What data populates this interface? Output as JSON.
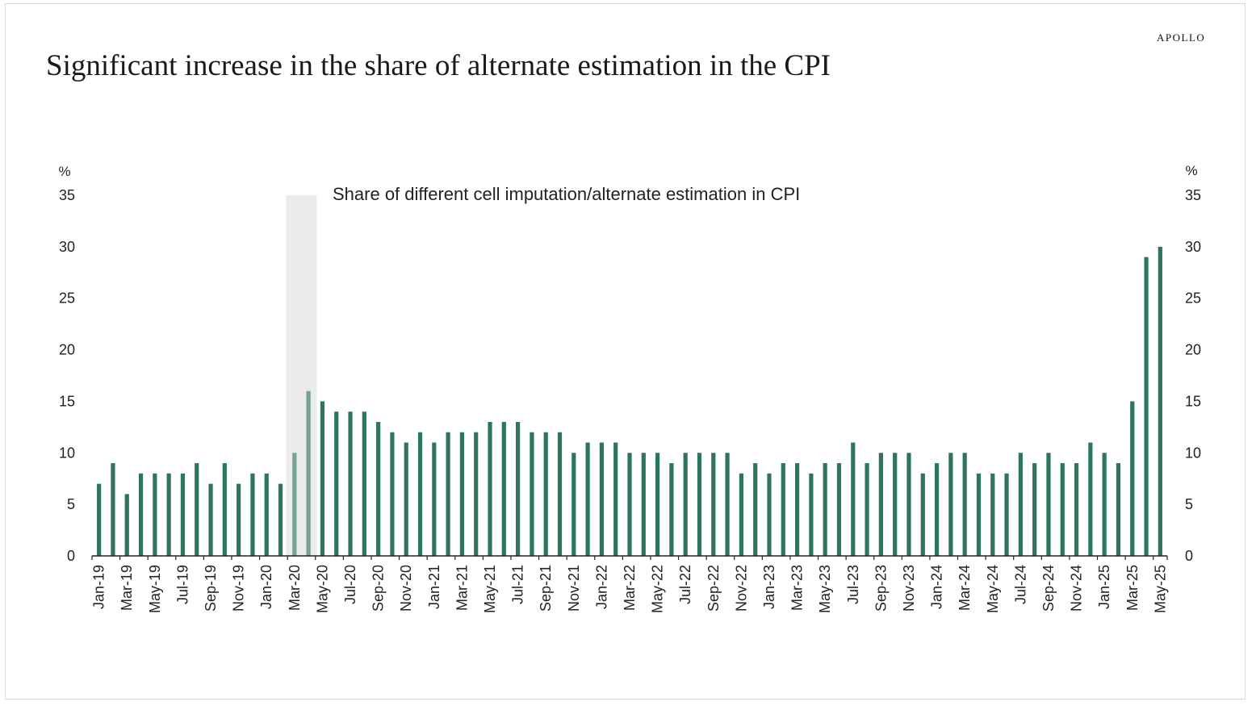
{
  "brand": "APOLLO",
  "title": "Significant increase in the share of alternate estimation in the CPI",
  "colors": {
    "bar": "#2e7560",
    "shade": "#ebebeb"
  },
  "chart_data": {
    "type": "bar",
    "subtitle": "Share of different cell imputation/alternate estimation in CPI",
    "yunit_left": "%",
    "yunit_right": "%",
    "ylim": [
      0,
      35
    ],
    "yticks": [
      0,
      5,
      10,
      15,
      20,
      25,
      30,
      35
    ],
    "categories": [
      "Jan-19",
      "Feb-19",
      "Mar-19",
      "Apr-19",
      "May-19",
      "Jun-19",
      "Jul-19",
      "Aug-19",
      "Sep-19",
      "Oct-19",
      "Nov-19",
      "Dec-19",
      "Jan-20",
      "Feb-20",
      "Mar-20",
      "Apr-20",
      "May-20",
      "Jun-20",
      "Jul-20",
      "Aug-20",
      "Sep-20",
      "Oct-20",
      "Nov-20",
      "Dec-20",
      "Jan-21",
      "Feb-21",
      "Mar-21",
      "Apr-21",
      "May-21",
      "Jun-21",
      "Jul-21",
      "Aug-21",
      "Sep-21",
      "Oct-21",
      "Nov-21",
      "Dec-21",
      "Jan-22",
      "Feb-22",
      "Mar-22",
      "Apr-22",
      "May-22",
      "Jun-22",
      "Jul-22",
      "Aug-22",
      "Sep-22",
      "Oct-22",
      "Nov-22",
      "Dec-22",
      "Jan-23",
      "Feb-23",
      "Mar-23",
      "Apr-23",
      "May-23",
      "Jun-23",
      "Jul-23",
      "Aug-23",
      "Sep-23",
      "Oct-23",
      "Nov-23",
      "Dec-23",
      "Jan-24",
      "Feb-24",
      "Mar-24",
      "Apr-24",
      "May-24",
      "Jun-24",
      "Jul-24",
      "Aug-24",
      "Sep-24",
      "Oct-24",
      "Nov-24",
      "Dec-24",
      "Jan-25",
      "Feb-25",
      "Mar-25",
      "Apr-25",
      "May-25"
    ],
    "x_tick_labels": [
      "Jan-19",
      "Mar-19",
      "May-19",
      "Jul-19",
      "Sep-19",
      "Nov-19",
      "Jan-20",
      "Mar-20",
      "May-20",
      "Jul-20",
      "Sep-20",
      "Nov-20",
      "Jan-21",
      "Mar-21",
      "May-21",
      "Jul-21",
      "Sep-21",
      "Nov-21",
      "Jan-22",
      "Mar-22",
      "May-22",
      "Jul-22",
      "Sep-22",
      "Nov-22",
      "Jan-23",
      "Mar-23",
      "May-23",
      "Jul-23",
      "Sep-23",
      "Nov-23",
      "Jan-24",
      "Mar-24",
      "May-24",
      "Jul-24",
      "Sep-24",
      "Nov-24",
      "Jan-25",
      "Mar-25",
      "May-25"
    ],
    "values": [
      7,
      9,
      6,
      8,
      8,
      8,
      8,
      9,
      7,
      9,
      7,
      8,
      8,
      7,
      10,
      16,
      15,
      14,
      14,
      14,
      13,
      12,
      11,
      12,
      11,
      12,
      12,
      12,
      13,
      13,
      13,
      12,
      12,
      12,
      10,
      11,
      11,
      11,
      10,
      10,
      10,
      9,
      10,
      10,
      10,
      10,
      8,
      9,
      8,
      9,
      9,
      8,
      9,
      9,
      11,
      9,
      10,
      10,
      10,
      8,
      9,
      10,
      10,
      8,
      8,
      8,
      10,
      9,
      10,
      9,
      9,
      11,
      10,
      9,
      15,
      29,
      30
    ],
    "shaded_period": [
      "Mar-20",
      "Apr-20"
    ],
    "grid": false,
    "legend": "none"
  }
}
